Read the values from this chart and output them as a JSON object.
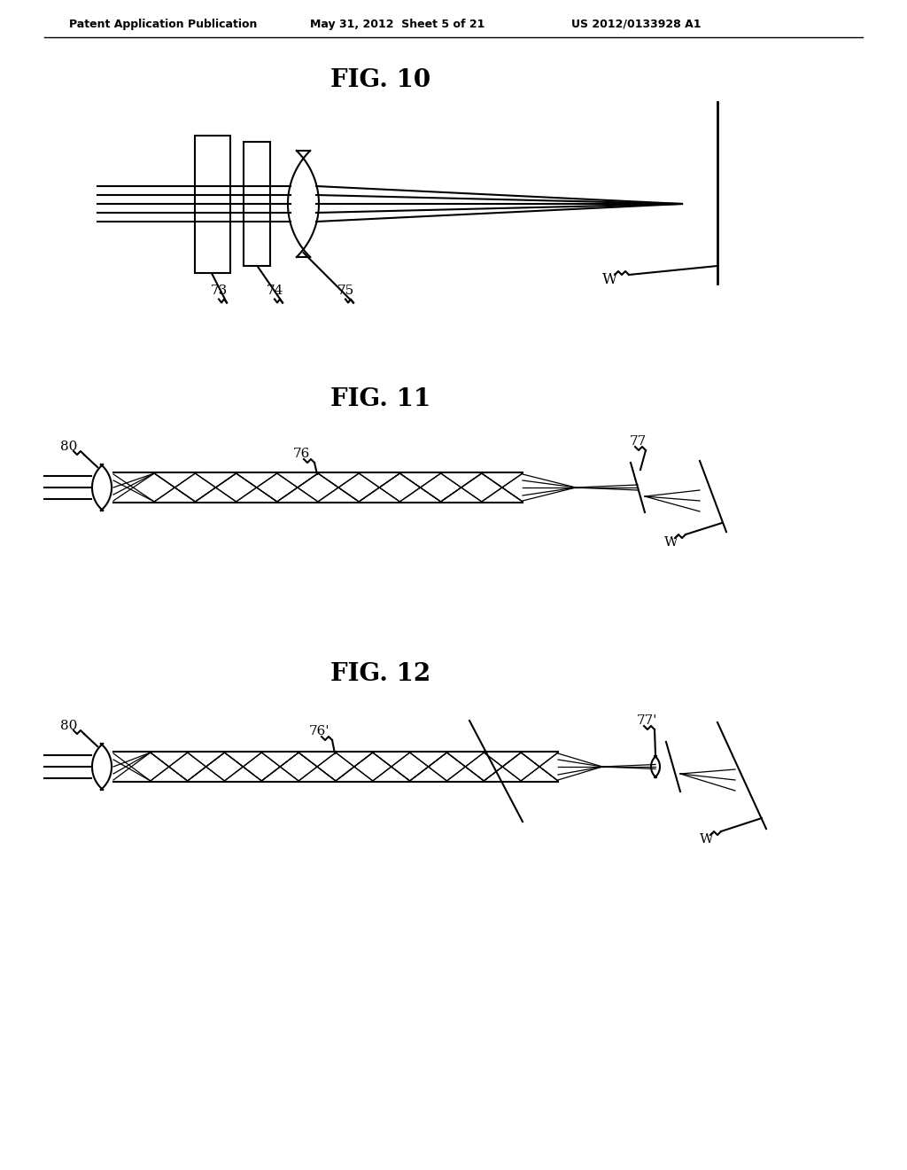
{
  "bg_color": "#ffffff",
  "line_color": "#000000",
  "header_left": "Patent Application Publication",
  "header_mid": "May 31, 2012  Sheet 5 of 21",
  "header_right": "US 2012/0133928 A1",
  "fig10_title": "FIG. 10",
  "fig11_title": "FIG. 11",
  "fig12_title": "FIG. 12",
  "label_73": "73",
  "label_74": "74",
  "label_75": "75",
  "label_W10": "W",
  "label_80_11": "80",
  "label_76_11": "76",
  "label_77_11": "77",
  "label_W11": "W",
  "label_80_12": "80",
  "label_76p": "76'",
  "label_77p": "77'",
  "label_W12": "W"
}
